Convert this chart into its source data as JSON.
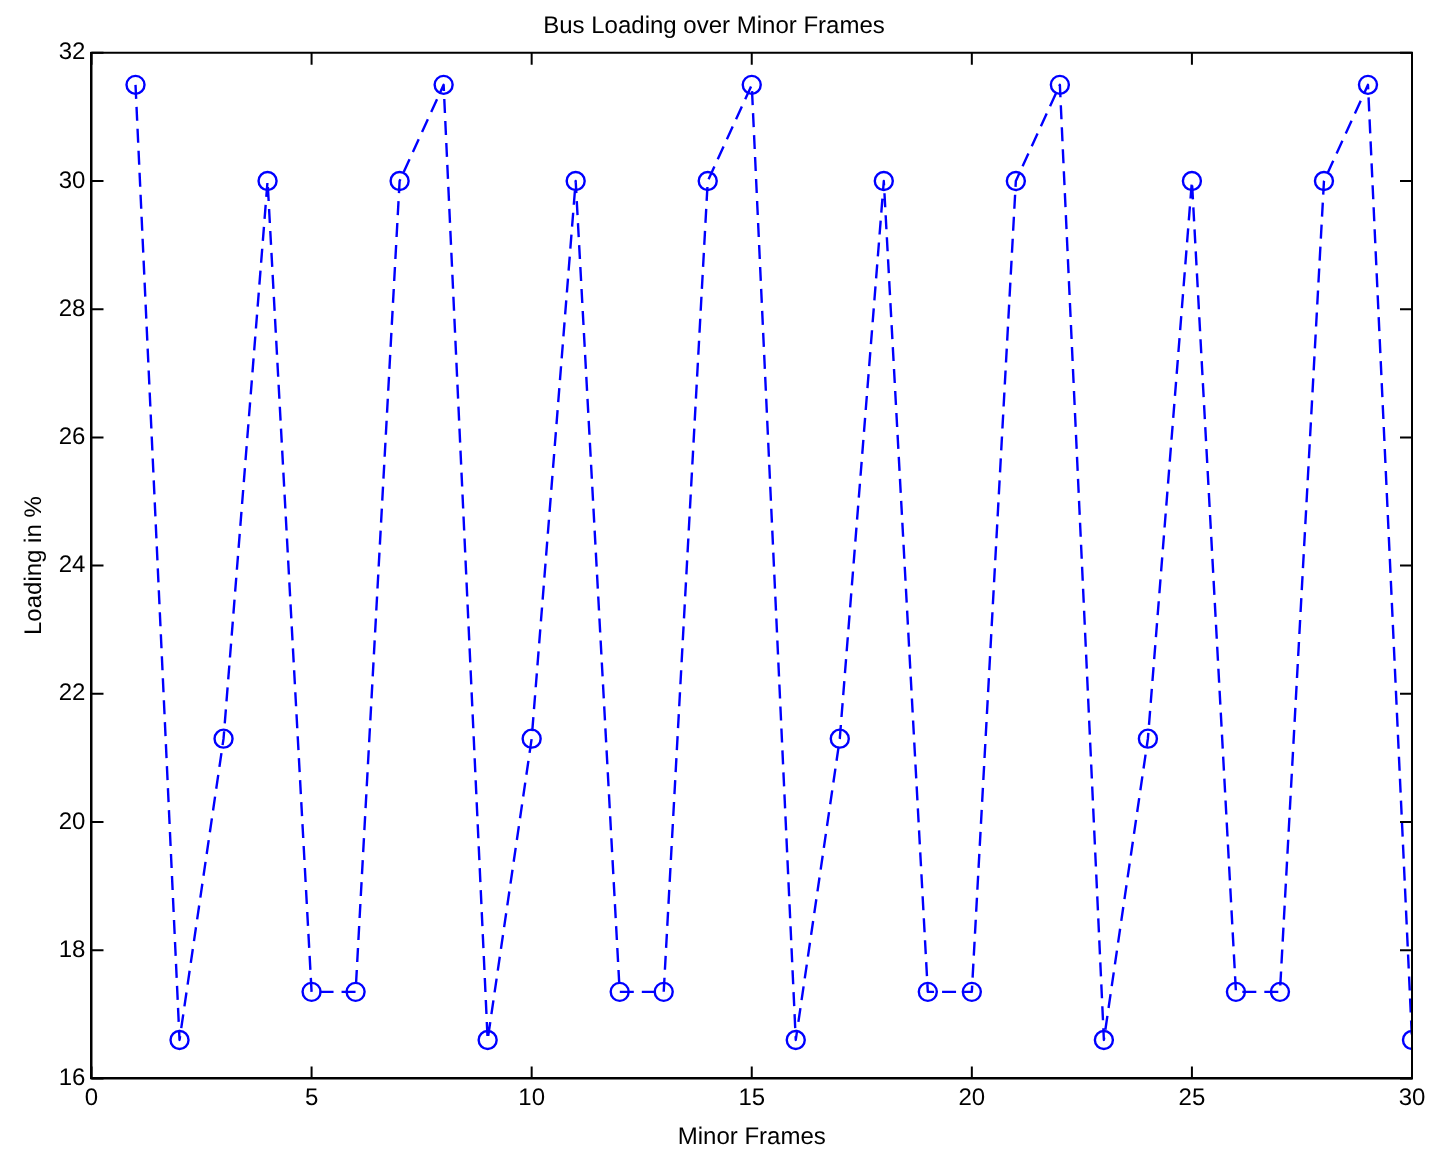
{
  "chart_data": {
    "type": "line",
    "title": "Bus Loading over Minor Frames",
    "xlabel": "Minor Frames",
    "ylabel": "Loading in %",
    "x": [
      1,
      2,
      3,
      4,
      5,
      6,
      7,
      8,
      9,
      10,
      11,
      12,
      13,
      14,
      15,
      16,
      17,
      18,
      19,
      20,
      21,
      22,
      23,
      24,
      25,
      26,
      27,
      28,
      29,
      30
    ],
    "series": [
      {
        "color": "#0000ff",
        "values": [
          31.5,
          16.6,
          21.3,
          30,
          17.35,
          17.35,
          30,
          31.5,
          16.6,
          21.3,
          30,
          17.35,
          17.35,
          30,
          31.5,
          16.6,
          21.3,
          30,
          17.35,
          17.35,
          30,
          31.5,
          16.6,
          21.3,
          30,
          17.35,
          17.35,
          30,
          31.5,
          16.6
        ]
      }
    ],
    "xlim": [
      0,
      30
    ],
    "xticks": [
      0,
      5,
      10,
      15,
      20,
      25,
      30
    ],
    "ylim": [
      16,
      32
    ],
    "yticks": [
      16,
      18,
      20,
      22,
      24,
      26,
      28,
      30,
      32
    ],
    "grid": false,
    "legend": false,
    "marker": "circle",
    "line_style": "dashed"
  }
}
